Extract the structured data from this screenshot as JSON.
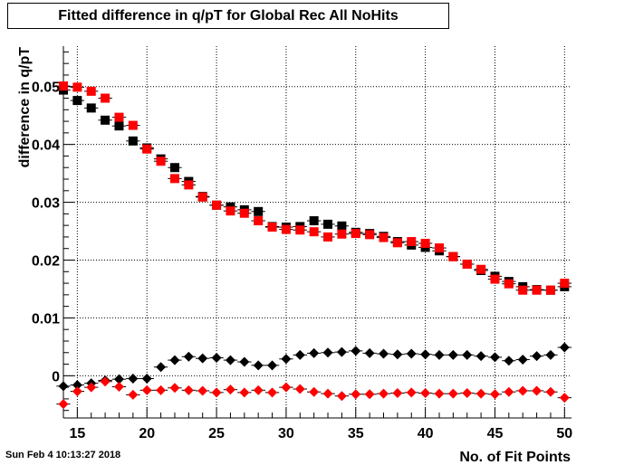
{
  "title": "Fitted difference in q/pT  for Global Rec All NoHits",
  "timestamp": "Sun Feb  4 10:13:27 2018",
  "chart_data": {
    "type": "scatter",
    "title": "Fitted difference in q/pT  for Global Rec All NoHits",
    "xlabel": "No. of Fit Points",
    "ylabel": "difference in q/pT",
    "xlim": [
      14,
      50.5
    ],
    "ylim": [
      -0.0073,
      0.057
    ],
    "grid": true,
    "x_ticks": [
      15,
      20,
      25,
      30,
      35,
      40,
      45,
      50
    ],
    "y_ticks": [
      0,
      0.01,
      0.02,
      0.03,
      0.04,
      0.05
    ],
    "x_tick_labels": [
      "15",
      "20",
      "25",
      "30",
      "35",
      "40",
      "45",
      "50"
    ],
    "y_tick_labels": [
      "0",
      "0.01",
      "0.02",
      "0.03",
      "0.04",
      "0.05"
    ],
    "x": [
      14,
      15,
      16,
      17,
      18,
      19,
      20,
      21,
      22,
      23,
      24,
      25,
      26,
      27,
      28,
      29,
      30,
      31,
      32,
      33,
      34,
      35,
      36,
      37,
      38,
      39,
      40,
      41,
      42,
      43,
      44,
      45,
      46,
      47,
      48,
      49,
      50
    ],
    "series": [
      {
        "marker": "square",
        "color": "#000000",
        "values": [
          0.0494,
          0.0476,
          0.0463,
          0.0442,
          0.0432,
          0.0406,
          0.0394,
          0.0375,
          0.036,
          0.0336,
          0.031,
          0.0295,
          0.0292,
          0.0287,
          0.0284,
          0.0258,
          0.0257,
          0.0258,
          0.0268,
          0.0262,
          0.0259,
          0.0248,
          0.0246,
          0.0241,
          0.0232,
          0.0226,
          0.0222,
          0.0216,
          0.0206,
          0.0193,
          0.0182,
          0.0172,
          0.0163,
          0.0154,
          0.0149,
          0.0148,
          0.0154
        ]
      },
      {
        "marker": "square",
        "color": "#ff0000",
        "values": [
          0.0501,
          0.0499,
          0.0492,
          0.048,
          0.0447,
          0.0433,
          0.0392,
          0.0371,
          0.0341,
          0.033,
          0.0309,
          0.0295,
          0.0285,
          0.0281,
          0.0268,
          0.0257,
          0.0253,
          0.0252,
          0.0249,
          0.024,
          0.0245,
          0.0246,
          0.0244,
          0.0239,
          0.023,
          0.0232,
          0.0229,
          0.0221,
          0.0206,
          0.0193,
          0.0184,
          0.0167,
          0.0159,
          0.0148,
          0.0148,
          0.0148,
          0.016
        ]
      },
      {
        "marker": "diamond",
        "color": "#000000",
        "values": [
          -0.0018,
          -0.0016,
          -0.0013,
          -0.0008,
          -0.0006,
          -0.0005,
          -0.0005,
          0.0015,
          0.0027,
          0.0033,
          0.003,
          0.0031,
          0.0027,
          0.0024,
          0.0018,
          0.0018,
          0.0029,
          0.0036,
          0.0039,
          0.004,
          0.0041,
          0.0043,
          0.0039,
          0.0038,
          0.0037,
          0.0038,
          0.0037,
          0.0036,
          0.0036,
          0.0036,
          0.0034,
          0.0032,
          0.0026,
          0.0028,
          0.0034,
          0.0036,
          0.0049
        ]
      },
      {
        "marker": "diamond",
        "color": "#ff0000",
        "values": [
          -0.0049,
          -0.0027,
          -0.002,
          -0.001,
          -0.0019,
          -0.0033,
          -0.0025,
          -0.0025,
          -0.0021,
          -0.0025,
          -0.0026,
          -0.0029,
          -0.0024,
          -0.0029,
          -0.0025,
          -0.0029,
          -0.002,
          -0.0023,
          -0.0028,
          -0.0031,
          -0.0035,
          -0.0032,
          -0.0032,
          -0.0031,
          -0.003,
          -0.0029,
          -0.003,
          -0.0031,
          -0.0031,
          -0.003,
          -0.0031,
          -0.0032,
          -0.0028,
          -0.0026,
          -0.0026,
          -0.0028,
          -0.0038
        ]
      }
    ]
  }
}
